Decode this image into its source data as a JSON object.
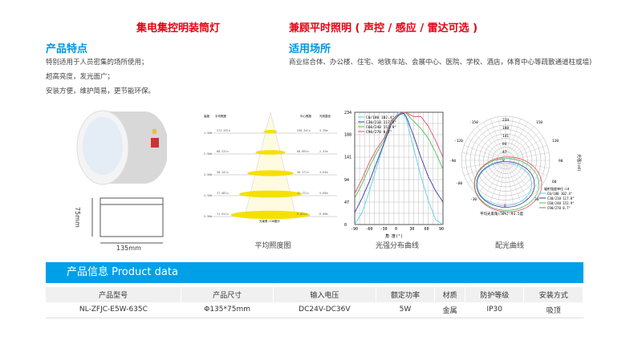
{
  "header": {
    "title_left": "集电集控明装筒灯",
    "title_right": "兼顾平时照明 ( 声控 / 感应 / 雷达可选 )"
  },
  "features": {
    "heading": "产品特点",
    "lines": [
      "特别适用于人员密集的场所使用；",
      "超高亮度，发光面广；",
      "安装方便，维护简易，更节能环保。"
    ]
  },
  "applications": {
    "heading": "适用场所",
    "text": "商业综合体、办公楼、住宅、地铁车站、会展中心、医院、学校、酒店，体育中心等疏散通道柱或墙)"
  },
  "product": {
    "height_label": "75mm",
    "width_label": "135mm"
  },
  "illuminance": {
    "caption": "平均照度图",
    "col_height": "高度",
    "col_avg": "平均照度",
    "col_center": "中心照度",
    "col_diameter": "光斑直径",
    "footer": "光束角:136度分",
    "rows": [
      {
        "h": "1.50m",
        "avg": "272.33lx",
        "center": "250.34lx",
        "d": "3.39m"
      },
      {
        "h": "2.50m",
        "avg": "88.23lx",
        "center": "68.89lx",
        "d": "2.47m"
      },
      {
        "h": "3.50m",
        "avg": "30.24lx",
        "center": "30.17lx",
        "d": "4.01m"
      },
      {
        "h": "4.50m",
        "avg": "17.88lx",
        "center": "17.72lx",
        "d": "5.05m"
      },
      {
        "h": "5.50m",
        "avg": "11.61lx",
        "center": "9.82lx",
        "d": "6.89m"
      }
    ]
  },
  "chart_data": [
    {
      "type": "line",
      "caption": "光强分布曲线",
      "xlabel": "角 度(°)",
      "xlim": [
        -90,
        90
      ],
      "ylim": [
        0,
        234
      ],
      "xticks": [
        -90,
        -60,
        -30,
        0,
        30,
        60,
        90
      ],
      "yticks": [
        0,
        47,
        94,
        141,
        188,
        234
      ],
      "grid": true,
      "legend": "top-left",
      "x": [
        -90,
        -75,
        -60,
        -45,
        -30,
        -15,
        0,
        10,
        15,
        30,
        45,
        60,
        75,
        90
      ],
      "series": [
        {
          "name": "C0/180 102.4°",
          "color": "#5ad0e8",
          "values": [
            0,
            25,
            70,
            120,
            170,
            215,
            234,
            230,
            220,
            160,
            100,
            50,
            10,
            0
          ]
        },
        {
          "name": "C30/210 117.8°",
          "color": "#3a3aa0",
          "values": [
            25,
            55,
            90,
            130,
            170,
            210,
            228,
            232,
            225,
            185,
            140,
            100,
            70,
            47
          ]
        },
        {
          "name": "C60/240 152.9°",
          "color": "#4cc04c",
          "values": [
            55,
            85,
            120,
            150,
            175,
            215,
            230,
            234,
            232,
            215,
            200,
            180,
            150,
            115
          ]
        },
        {
          "name": "C90/270 0.7°",
          "color": "#e05070",
          "values": [
            65,
            95,
            130,
            158,
            180,
            218,
            230,
            234,
            233,
            225,
            225,
            205,
            175,
            140
          ]
        }
      ]
    },
    {
      "type": "polar",
      "caption": "配光曲线",
      "rticks": [
        0,
        47,
        94,
        141,
        188,
        234
      ],
      "angle_labels": [
        "-150",
        "150",
        "-120",
        "120",
        "-90",
        "90",
        "-60",
        "60",
        "-30",
        "30",
        "0"
      ],
      "unit_label": "光强(cd)",
      "legend_title": "辐射强度单位:cd",
      "footer": "平均光束角(50%):93.5度",
      "series": [
        {
          "name": "C0/180 102.4°",
          "color": "#5ad0e8"
        },
        {
          "name": "C30/210 117.8°",
          "color": "#3a3aa0"
        },
        {
          "name": "C60/240 152.9°",
          "color": "#4cc04c"
        },
        {
          "name": "C90/270 0.7°",
          "color": "#e05070"
        }
      ]
    }
  ],
  "product_data": {
    "title": "产品信息 Product data",
    "headers": [
      "产品型号",
      "产品尺寸",
      "输入电压",
      "额定功率",
      "材质",
      "防护等级",
      "安装方式"
    ],
    "row": [
      "NL-ZFJC-E5W-635C",
      "Φ135*75mm",
      "DC24V-DC36V",
      "5W",
      "金属",
      "IP30",
      "吸顶"
    ]
  }
}
